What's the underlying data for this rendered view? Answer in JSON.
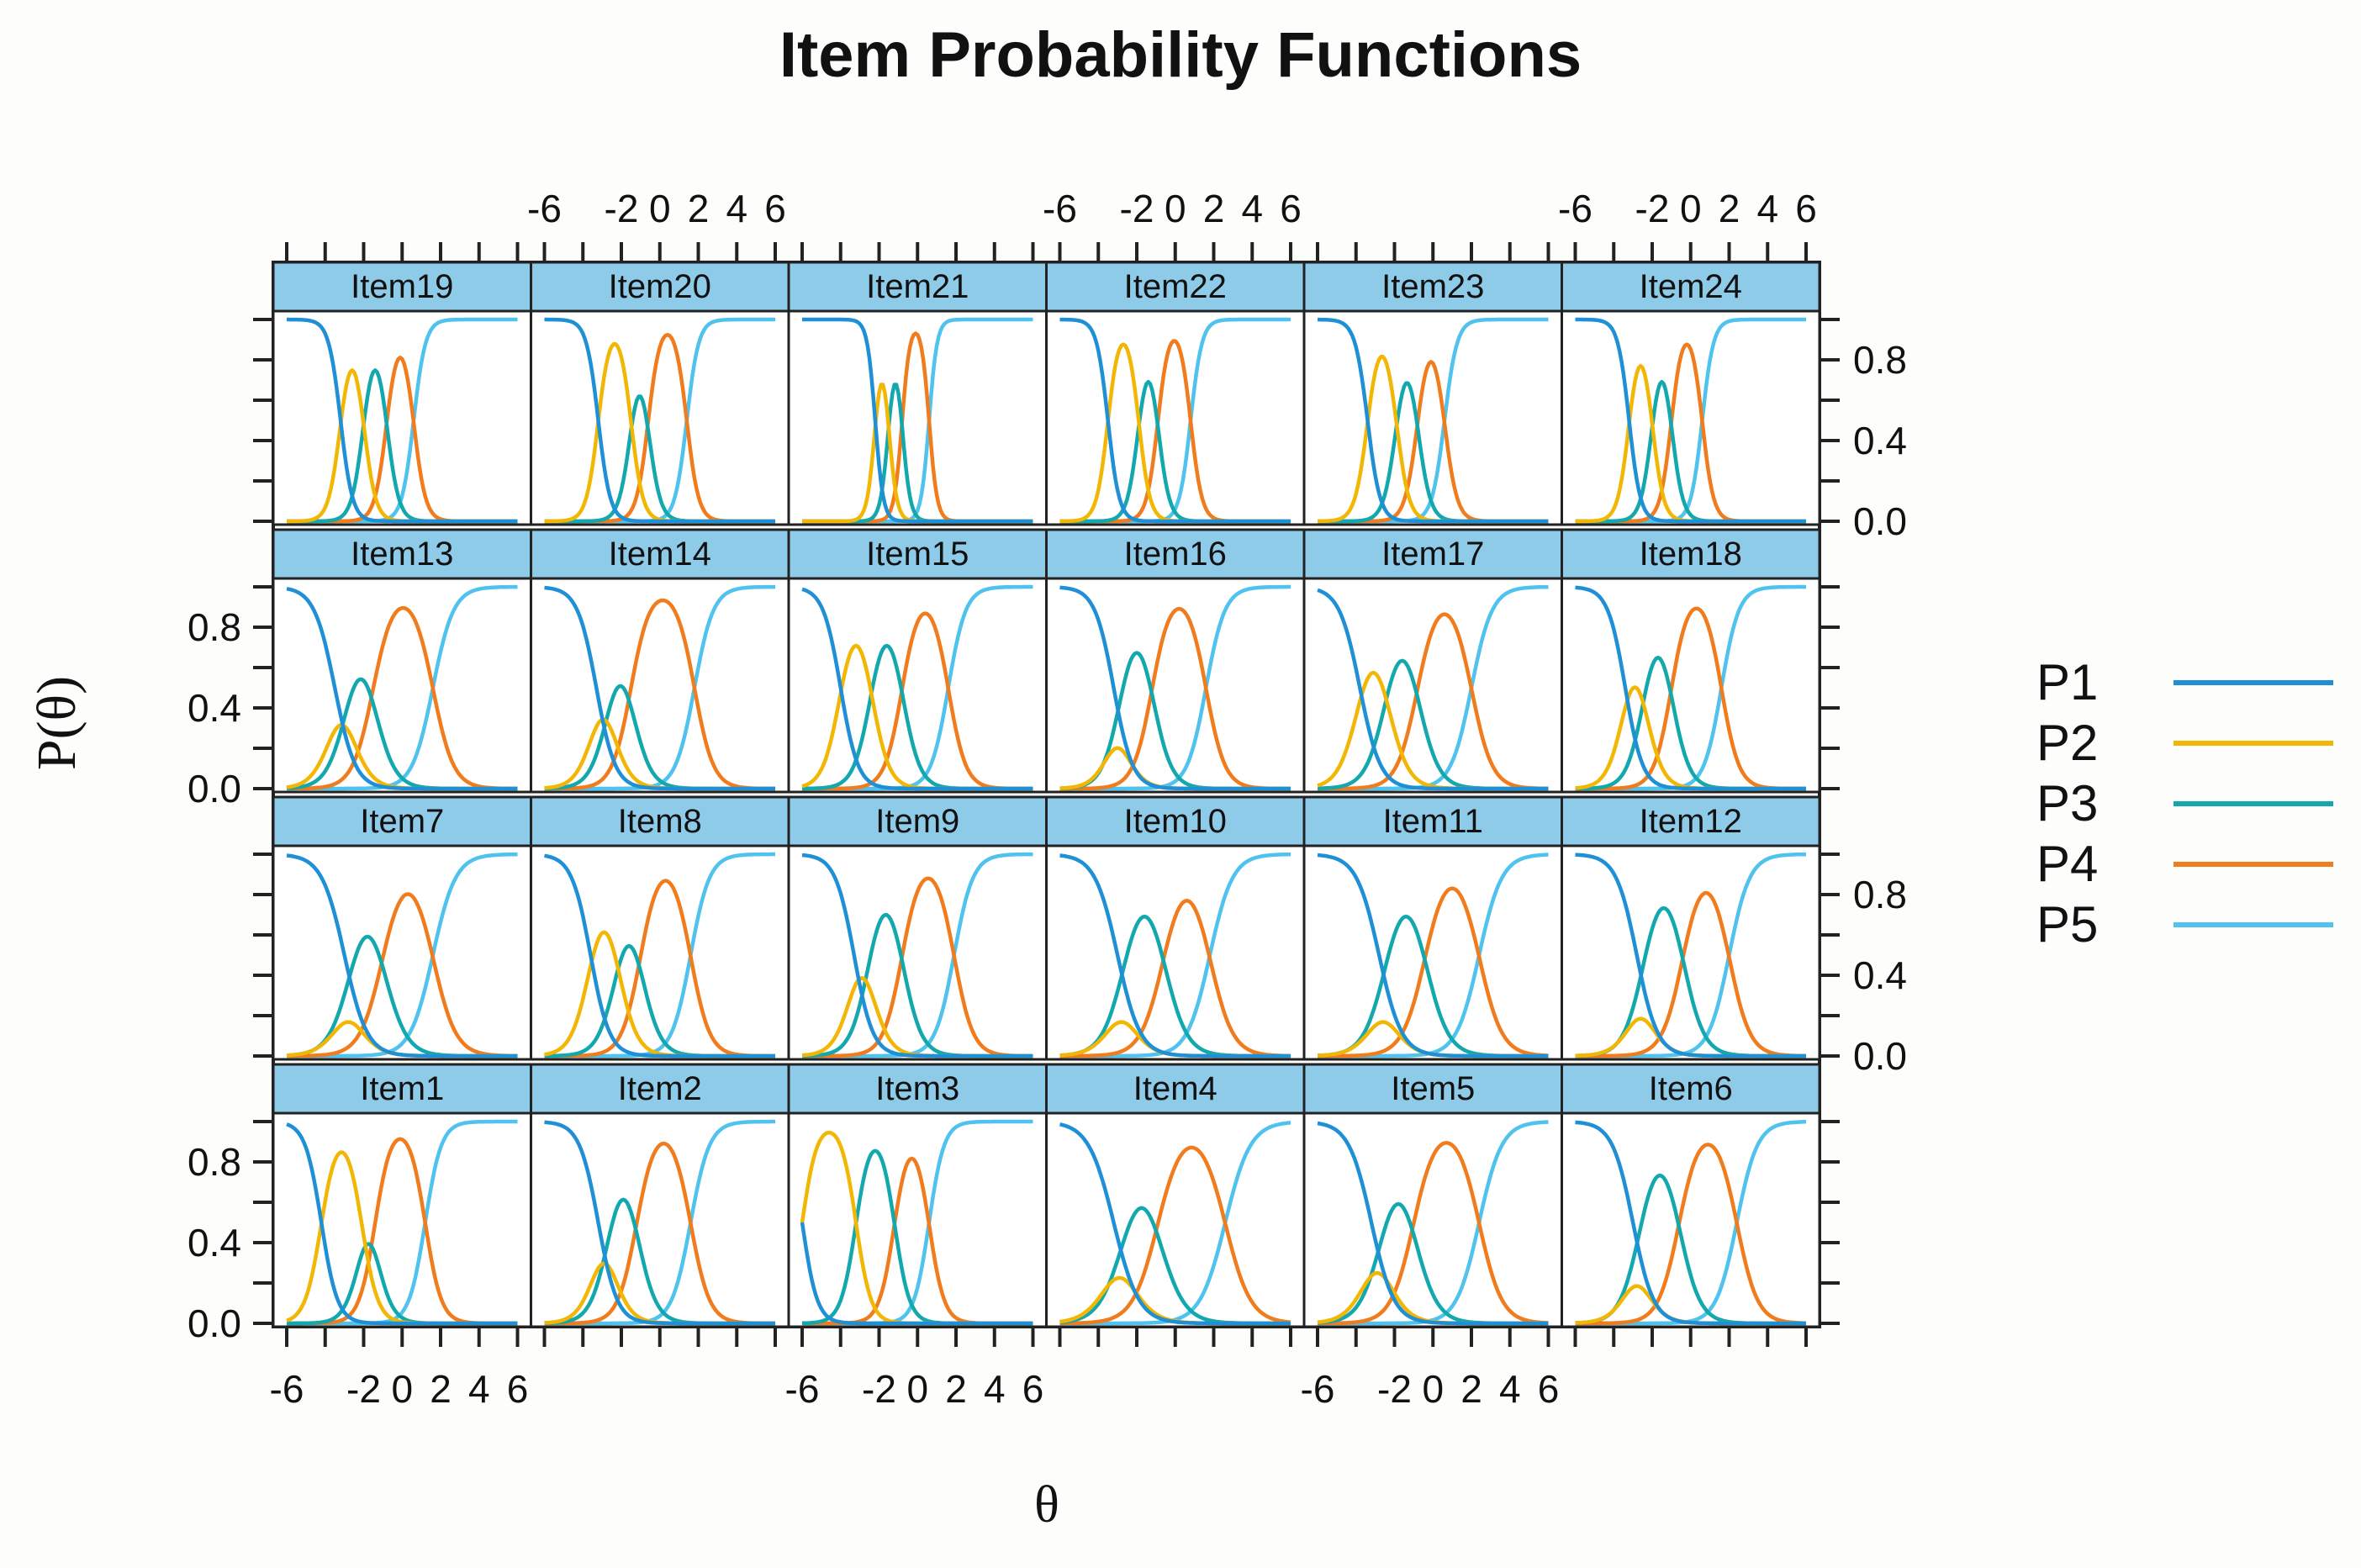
{
  "title": "Item Probability Functions",
  "ylabel": "P(θ)",
  "xlabel": "θ",
  "colors": {
    "P1": "#1f8fd6",
    "P2": "#f2b705",
    "P3": "#12a8ad",
    "P4": "#f07c1e",
    "P5": "#4fc3ee",
    "strip": "#8ecbe8",
    "frame": "#222222"
  },
  "chart_data": {
    "type": "line",
    "layout": "trellis 6 columns x 4 rows",
    "xlim": [
      -6,
      6
    ],
    "ylim": [
      0,
      1
    ],
    "x_tick_labels": [
      "-6",
      "-2",
      "0",
      "2",
      "4",
      "6"
    ],
    "y_tick_labels": [
      "0.0",
      "0.4",
      "0.8"
    ],
    "legend": [
      "P1",
      "P2",
      "P3",
      "P4",
      "P5"
    ],
    "legend_placement": "right",
    "panel_rows": [
      [
        "Item19",
        "Item20",
        "Item21",
        "Item22",
        "Item23",
        "Item24"
      ],
      [
        "Item13",
        "Item14",
        "Item15",
        "Item16",
        "Item17",
        "Item18"
      ],
      [
        "Item7",
        "Item8",
        "Item9",
        "Item10",
        "Item11",
        "Item12"
      ],
      [
        "Item1",
        "Item2",
        "Item3",
        "Item4",
        "Item5",
        "Item6"
      ]
    ],
    "model": "graded response; each item defined by discrimination a and thresholds b",
    "items": {
      "Item19": {
        "a": 1.9,
        "b": [
          -3.2,
          -2.0,
          -0.8,
          0.6
        ]
      },
      "Item20": {
        "a": 1.9,
        "b": [
          -3.2,
          -1.5,
          -0.6,
          1.4
        ]
      },
      "Item21": {
        "a": 2.8,
        "b": [
          -2.2,
          -1.5,
          -0.8,
          0.6
        ]
      },
      "Item22": {
        "a": 2.0,
        "b": [
          -3.5,
          -1.9,
          -0.9,
          0.8
        ]
      },
      "Item23": {
        "a": 1.8,
        "b": [
          -3.4,
          -1.9,
          -0.8,
          0.6
        ]
      },
      "Item24": {
        "a": 2.0,
        "b": [
          -3.2,
          -2.0,
          -1.0,
          0.6
        ]
      },
      "Item13": {
        "a": 1.1,
        "b": [
          -3.5,
          -2.8,
          -1.5,
          1.6
        ]
      },
      "Item14": {
        "a": 1.2,
        "b": [
          -3.3,
          -2.6,
          -1.5,
          1.8
        ]
      },
      "Item15": {
        "a": 1.3,
        "b": [
          -4.0,
          -2.4,
          -0.8,
          1.6
        ]
      },
      "Item16": {
        "a": 1.2,
        "b": [
          -3.2,
          -2.8,
          -1.2,
          1.6
        ]
      },
      "Item17": {
        "a": 1.1,
        "b": [
          -3.8,
          -2.4,
          -0.8,
          2.0
        ]
      },
      "Item18": {
        "a": 1.3,
        "b": [
          -3.4,
          -2.4,
          -1.0,
          1.6
        ]
      },
      "Item7": {
        "a": 1.0,
        "b": [
          -3.0,
          -2.6,
          -1.0,
          1.6
        ]
      },
      "Item8": {
        "a": 1.2,
        "b": [
          -3.6,
          -2.2,
          -1.0,
          1.6
        ]
      },
      "Item9": {
        "a": 1.2,
        "b": [
          -3.3,
          -2.5,
          -0.8,
          1.9
        ]
      },
      "Item10": {
        "a": 1.0,
        "b": [
          -3.0,
          -2.6,
          -0.6,
          1.8
        ]
      },
      "Item11": {
        "a": 1.0,
        "b": [
          -2.8,
          -2.4,
          -0.4,
          2.4
        ]
      },
      "Item12": {
        "a": 1.1,
        "b": [
          -2.8,
          -2.4,
          -0.4,
          2.0
        ]
      },
      "Item1": {
        "a": 1.4,
        "b": [
          -4.2,
          -2.1,
          -1.4,
          1.2
        ]
      },
      "Item2": {
        "a": 1.2,
        "b": [
          -3.2,
          -2.6,
          -1.2,
          1.6
        ]
      },
      "Item3": {
        "a": 1.5,
        "b": [
          -6.0,
          -3.2,
          -1.2,
          0.6
        ]
      },
      "Item4": {
        "a": 0.9,
        "b": [
          -3.2,
          -2.6,
          -0.9,
          2.6
        ]
      },
      "Item5": {
        "a": 1.0,
        "b": [
          -3.2,
          -2.6,
          -1.0,
          2.4
        ]
      },
      "Item6": {
        "a": 1.1,
        "b": [
          -3.0,
          -2.6,
          -0.6,
          2.4
        ]
      }
    }
  }
}
